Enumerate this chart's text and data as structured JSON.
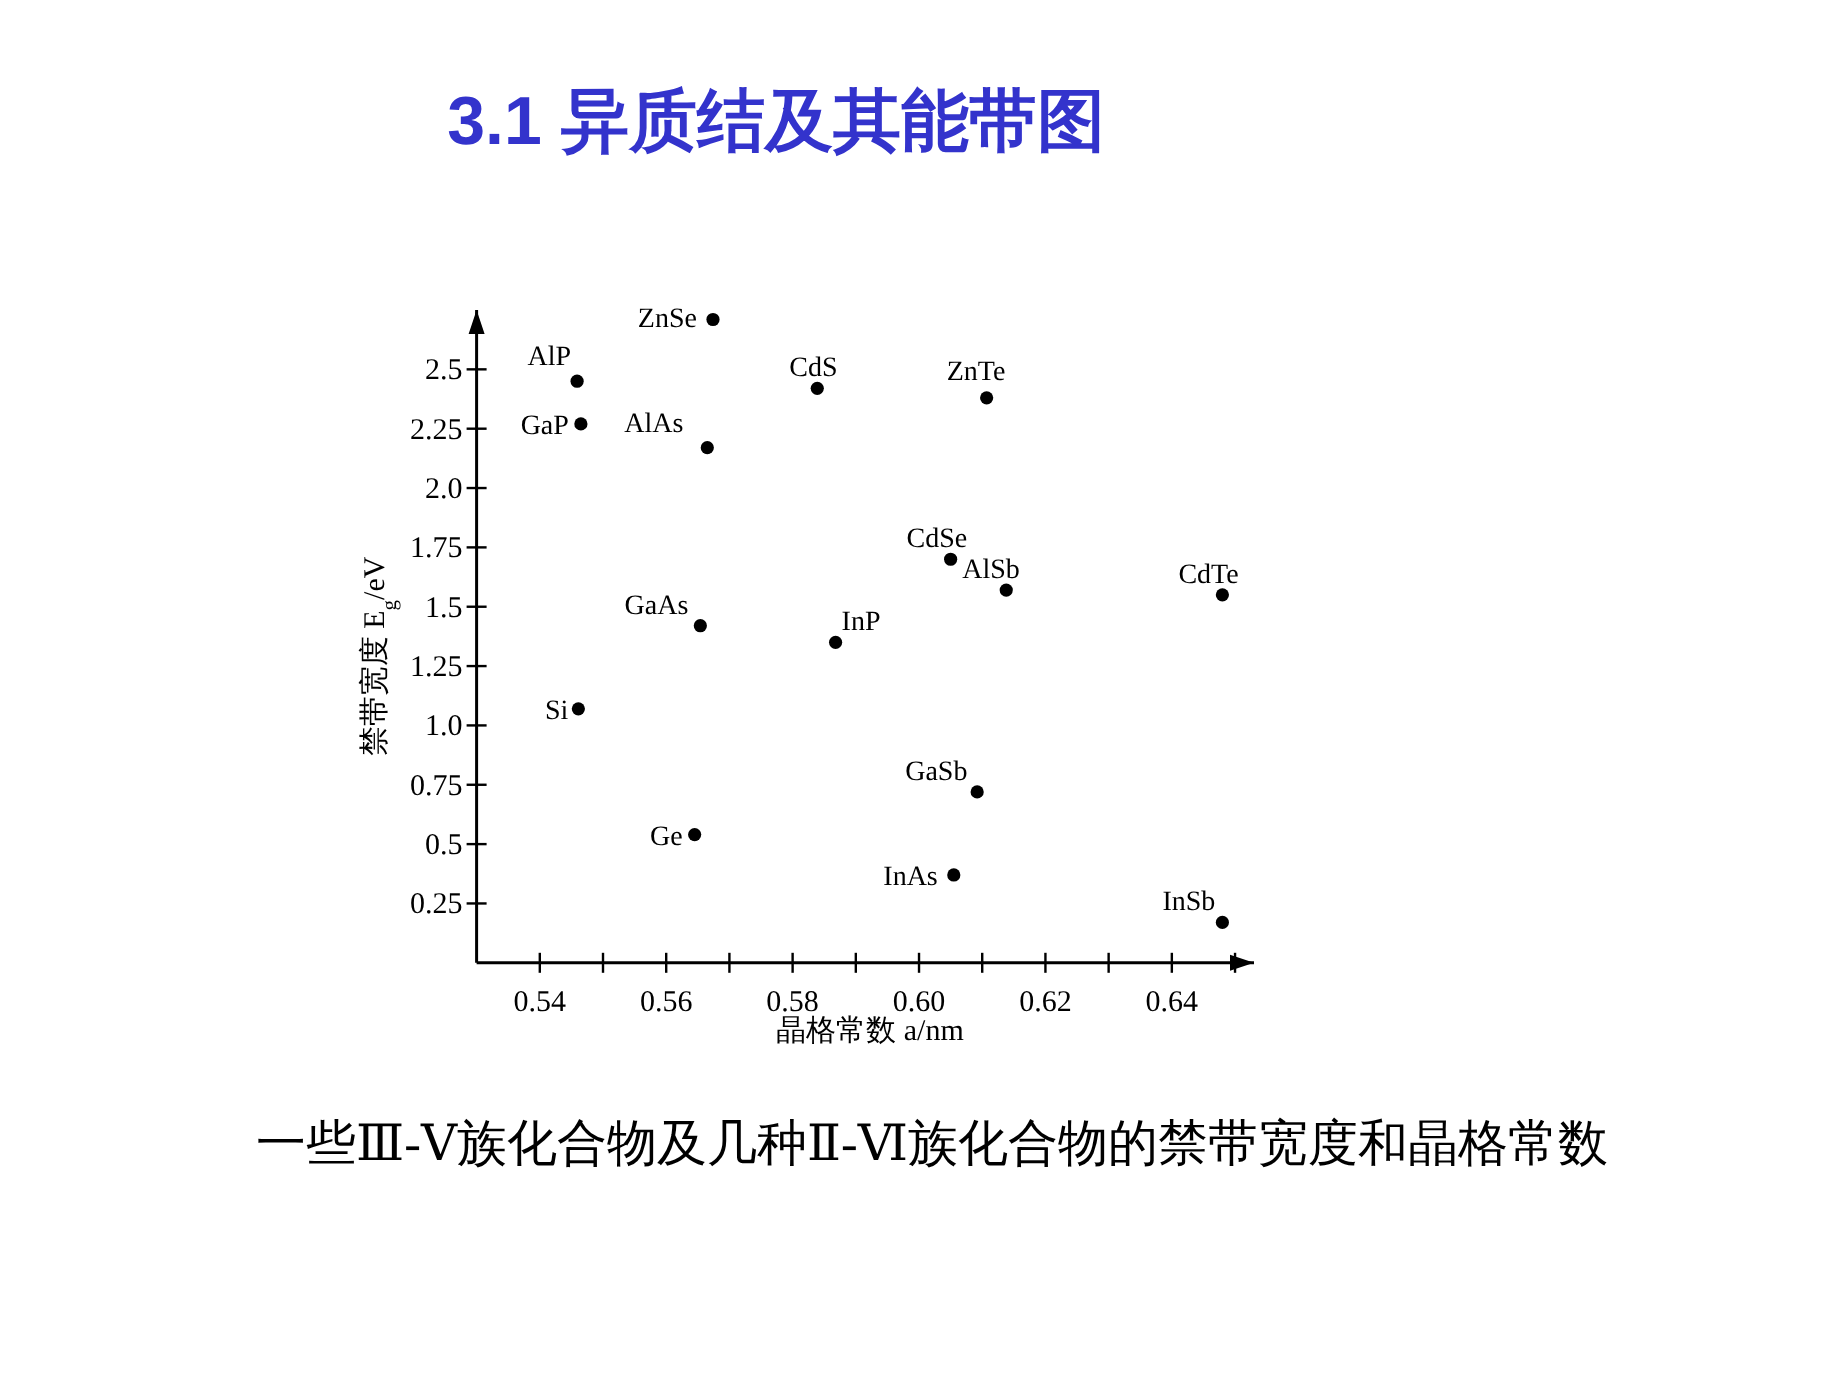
{
  "chart_data": {
    "type": "scatter",
    "title": "3.1  异质结及其能带图",
    "xlabel": "晶格常数 a/nm",
    "ylabel": "禁带宽度 E$_{g}$/eV",
    "x": [
      0.5674,
      0.5459,
      0.5465,
      0.5665,
      0.5654,
      0.5839,
      0.6107,
      0.605,
      0.6138,
      0.648,
      0.5868,
      0.5461,
      0.5645,
      0.6092,
      0.6055,
      0.648
    ],
    "series": [
      {
        "color": "#000000",
        "values": [
          2.71,
          2.45,
          2.27,
          2.17,
          1.42,
          2.42,
          2.38,
          1.7,
          1.57,
          1.55,
          1.35,
          1.07,
          0.54,
          0.72,
          0.37,
          0.17
        ]
      }
    ],
    "marker": "circle",
    "xlim": [
      0.53,
      0.653
    ],
    "xticks": [
      0.54,
      {
        "value": 0.55,
        "label": null
      },
      0.56,
      {
        "value": 0.57,
        "label": null
      },
      0.58,
      {
        "value": 0.59,
        "label": null
      },
      {
        "value": 0.6,
        "label": "0.60"
      },
      {
        "value": 0.61,
        "label": null
      },
      0.62,
      {
        "value": 0.63,
        "label": null
      },
      0.64,
      {
        "value": 0.65,
        "label": null
      }
    ],
    "ylim": [
      0,
      2.75
    ],
    "yticks": [
      0.25,
      0.5,
      0.75,
      {
        "value": 1,
        "label": "1.0"
      },
      1.25,
      1.5,
      1.75,
      {
        "value": 2,
        "label": "2.0"
      },
      2.25,
      2.5
    ],
    "annotations": [
      {
        "text": "ZnSe",
        "x": 0.5674,
        "y": 2.71
      },
      {
        "text": "AlP",
        "x": 0.5459,
        "y": 2.45
      },
      {
        "text": "GaP",
        "x": 0.5465,
        "y": 2.27
      },
      {
        "text": "AlAs",
        "x": 0.5665,
        "y": 2.17
      },
      {
        "text": "GaAs",
        "x": 0.5654,
        "y": 1.42
      },
      {
        "text": "CdS",
        "x": 0.5839,
        "y": 2.42
      },
      {
        "text": "ZnTe",
        "x": 0.6107,
        "y": 2.38
      },
      {
        "text": "CdSe",
        "x": 0.605,
        "y": 1.7
      },
      {
        "text": "AlSb",
        "x": 0.6138,
        "y": 1.57
      },
      {
        "text": "CdTe",
        "x": 0.648,
        "y": 1.55
      },
      {
        "text": "InP",
        "x": 0.5868,
        "y": 1.35
      },
      {
        "text": "Si",
        "x": 0.5461,
        "y": 1.07
      },
      {
        "text": "Ge",
        "x": 0.5645,
        "y": 0.54
      },
      {
        "text": "GaSb",
        "x": 0.6092,
        "y": 0.72
      },
      {
        "text": "InAs",
        "x": 0.6055,
        "y": 0.37
      },
      {
        "text": "InSb",
        "x": 0.648,
        "y": 0.17
      },
      "一些Ⅲ-Ⅴ族化合物及几种Ⅱ-Ⅵ族化合物的禁带宽度和晶格常数"
    ]
  }
}
